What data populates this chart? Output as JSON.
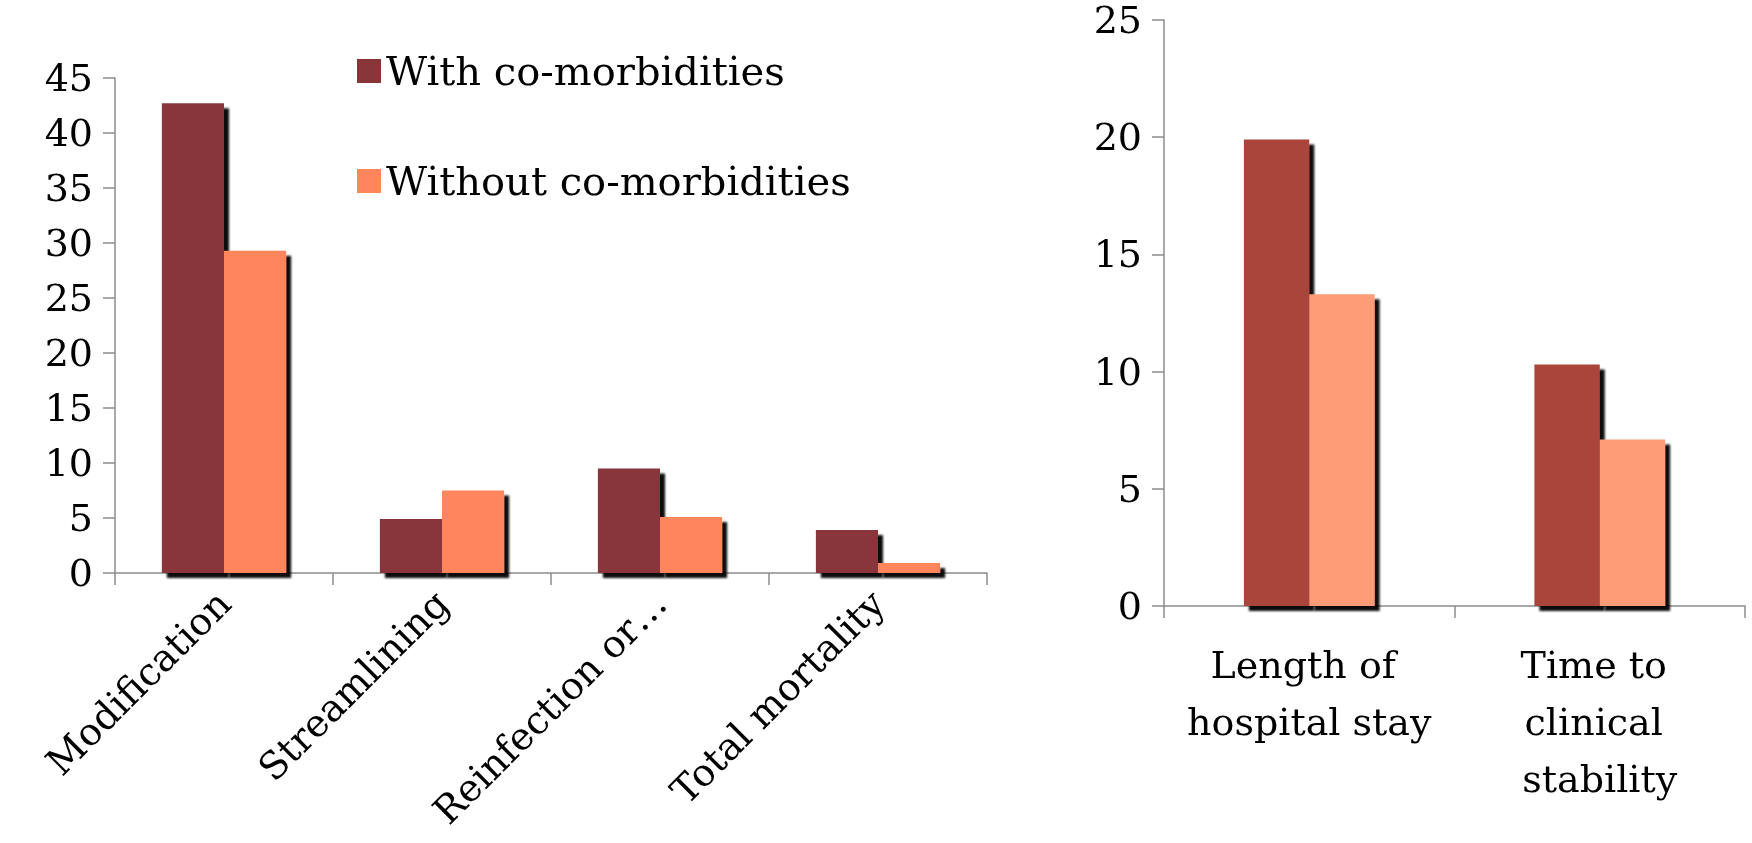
{
  "chart_data": [
    {
      "type": "bar",
      "categories": [
        "Modification",
        "Streamlining",
        "Reinfection or…",
        "Total mortality"
      ],
      "series": [
        {
          "name": "With co-morbidities",
          "color": "#88353a",
          "values": [
            42.7,
            4.9,
            9.5,
            3.9
          ]
        },
        {
          "name": "Without co-morbidities",
          "color": "#ff855c",
          "values": [
            29.3,
            7.5,
            5.1,
            0.9
          ]
        }
      ],
      "ylim": [
        0,
        45
      ],
      "yticks": [
        0,
        5,
        10,
        15,
        20,
        25,
        30,
        35,
        40,
        45
      ],
      "legend": "top"
    },
    {
      "type": "bar",
      "categories": [
        "Length of hospital stay",
        "Time to clinical stability"
      ],
      "series": [
        {
          "color": "#a9453b",
          "values": [
            19.9,
            10.3
          ]
        },
        {
          "color": "#fd9c76",
          "values": [
            13.3,
            7.1
          ]
        }
      ],
      "ylim": [
        0,
        25
      ],
      "yticks": [
        0,
        5,
        10,
        15,
        20,
        25
      ]
    }
  ]
}
